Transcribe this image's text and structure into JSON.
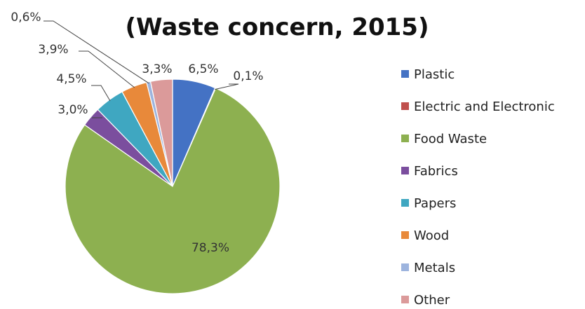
{
  "chart_data": {
    "type": "pie",
    "title": "(Waste concern, 2015)",
    "legend_position": "right",
    "slices": [
      {
        "name": "Plastic",
        "value": 6.5,
        "label": "6,5%",
        "color": "#4472C4"
      },
      {
        "name": "Electric and Electronic",
        "value": 0.1,
        "label": "0,1%",
        "color": "#C0504D"
      },
      {
        "name": "Food Waste",
        "value": 78.3,
        "label": "78,3%",
        "color": "#8DB050"
      },
      {
        "name": "Fabrics",
        "value": 3.0,
        "label": "3,0%",
        "color": "#7B4E9E"
      },
      {
        "name": "Papers",
        "value": 4.5,
        "label": "4,5%",
        "color": "#3FA7C1"
      },
      {
        "name": "Wood",
        "value": 3.9,
        "label": "3,9%",
        "color": "#E8893A"
      },
      {
        "name": "Metals",
        "value": 0.6,
        "label": "0,6%",
        "color": "#9DB4DE"
      },
      {
        "name": "Other",
        "value": 3.3,
        "label": "3,3%",
        "color": "#DB9A9A"
      }
    ]
  }
}
